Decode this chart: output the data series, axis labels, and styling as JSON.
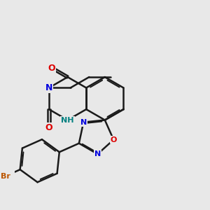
{
  "bg_color": "#e8e8e8",
  "bond_color": "#1a1a1a",
  "bond_width": 1.8,
  "atom_colors": {
    "N": "#0000dd",
    "O": "#dd0000",
    "Br": "#bb5500",
    "NH": "#008080",
    "C": "#1a1a1a"
  },
  "font_size": 8.0,
  "figsize": [
    3.0,
    3.0
  ],
  "dpi": 100
}
